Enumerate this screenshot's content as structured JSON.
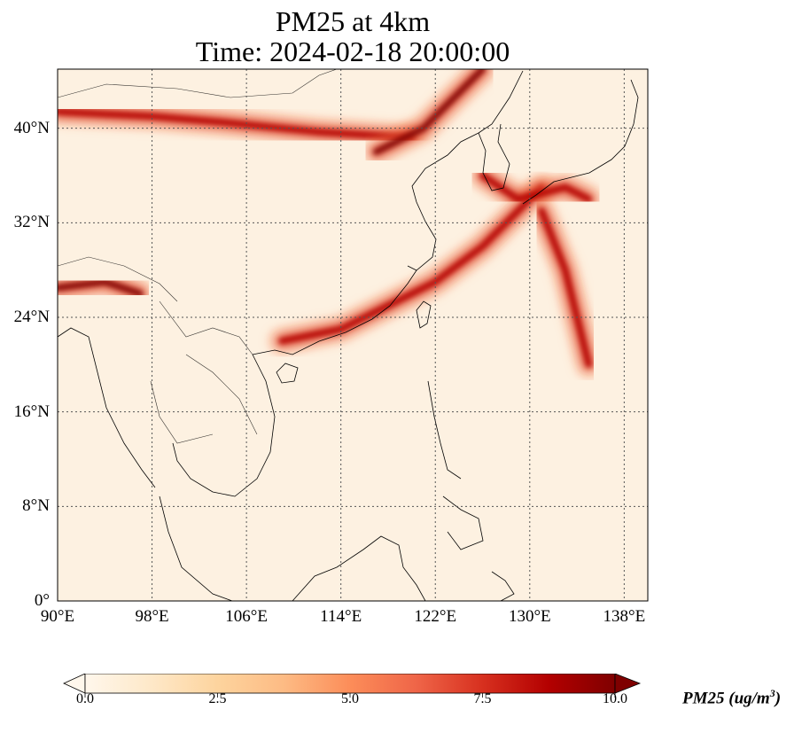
{
  "title": {
    "line1": "PM25 at 4km",
    "line2": "Time: 2024-02-18 20:00:00"
  },
  "map": {
    "lon_range": [
      90,
      140
    ],
    "lat_range": [
      0,
      45
    ],
    "x_ticks": [
      "90°E",
      "98°E",
      "106°E",
      "114°E",
      "122°E",
      "130°E",
      "138°E"
    ],
    "x_tick_values": [
      90,
      98,
      106,
      114,
      122,
      130,
      138
    ],
    "y_ticks": [
      "0°",
      "8°N",
      "16°N",
      "24°N",
      "32°N",
      "40°N"
    ],
    "y_tick_values": [
      0,
      8,
      16,
      24,
      32,
      40
    ],
    "gridlines": "dotted"
  },
  "colorbar": {
    "label": "PM25 (ug/m",
    "label_sup": "3",
    "label_close": ")",
    "ticks": [
      "0.0",
      "2.5",
      "5.0",
      "7.5",
      "10.0"
    ],
    "tick_values": [
      0,
      2.5,
      5,
      7.5,
      10
    ],
    "range": [
      0,
      10
    ],
    "colormap": "OrRd",
    "colors": [
      "#fff7ec",
      "#fee8c8",
      "#fdd49e",
      "#fdbb84",
      "#fc8d59",
      "#ef6548",
      "#d7301f",
      "#b30000",
      "#7f0000"
    ],
    "extend": "both"
  },
  "plumes": [
    {
      "name": "northern-band",
      "points": [
        [
          90,
          41.4
        ],
        [
          98,
          41
        ],
        [
          104,
          40.5
        ],
        [
          112,
          39.7
        ],
        [
          120,
          39.2
        ]
      ],
      "level": 9
    },
    {
      "name": "northeast-band",
      "points": [
        [
          117,
          38
        ],
        [
          121,
          40
        ],
        [
          124,
          43
        ],
        [
          126,
          45
        ]
      ],
      "level": 10
    },
    {
      "name": "coastal-band",
      "points": [
        [
          109,
          22
        ],
        [
          114,
          23
        ],
        [
          118,
          25
        ],
        [
          122,
          27
        ],
        [
          126,
          30
        ],
        [
          128,
          32
        ],
        [
          131,
          35
        ]
      ],
      "level": 9
    },
    {
      "name": "pacific-plume",
      "points": [
        [
          131,
          33
        ],
        [
          133,
          28
        ],
        [
          134,
          24
        ],
        [
          135,
          20
        ]
      ],
      "level": 9
    },
    {
      "name": "himalaya-band",
      "points": [
        [
          90,
          26.5
        ],
        [
          94,
          27
        ],
        [
          97,
          26
        ]
      ],
      "level": 10
    },
    {
      "name": "korea-japan",
      "points": [
        [
          126,
          36
        ],
        [
          129,
          34
        ],
        [
          133,
          35
        ],
        [
          135,
          34
        ]
      ],
      "level": 9
    }
  ]
}
